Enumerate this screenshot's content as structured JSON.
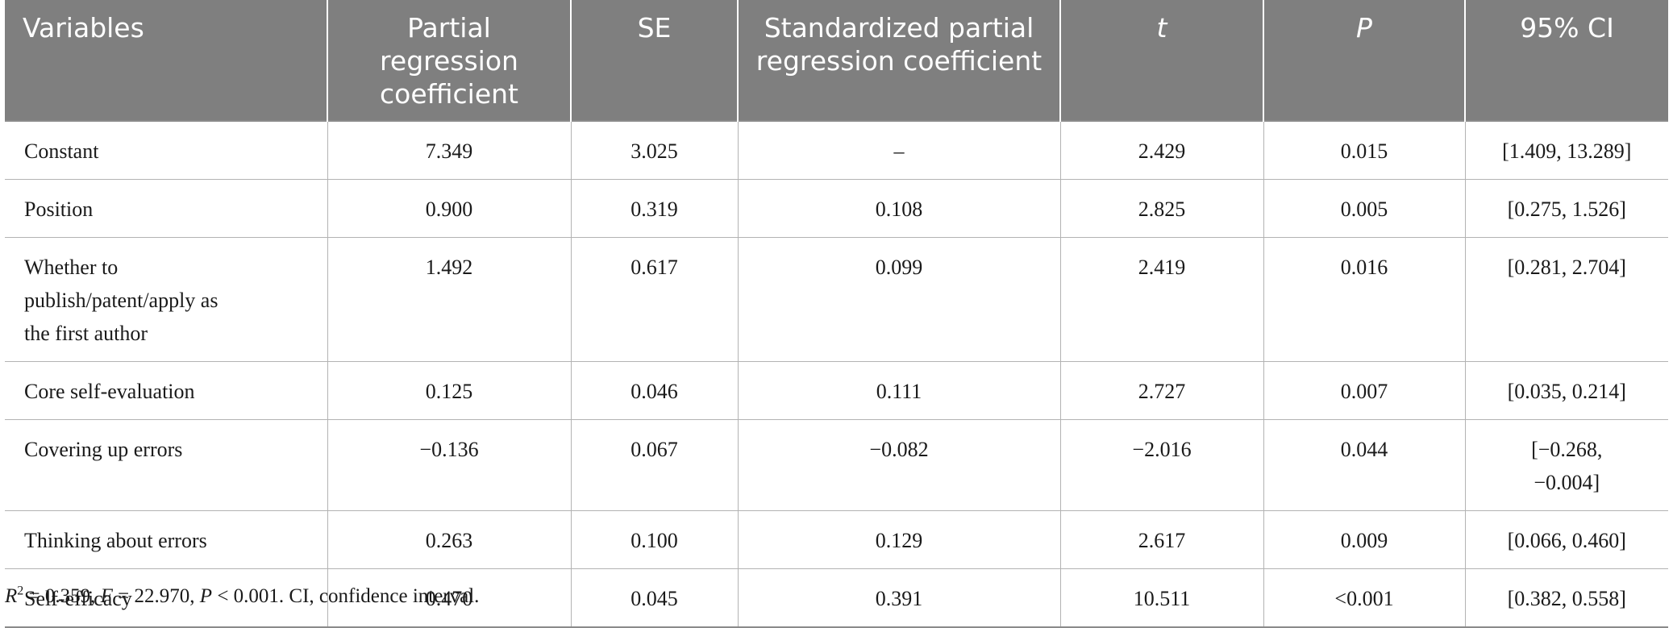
{
  "table": {
    "headers": [
      "Variables",
      "Partial regression coefficient",
      "SE",
      "Standardized partial regression coefficient",
      "t",
      "P",
      "95% CI"
    ],
    "rows": [
      [
        "Constant",
        "7.349",
        "3.025",
        "–",
        "2.429",
        "0.015",
        "[1.409, 13.289]"
      ],
      [
        "Position",
        "0.900",
        "0.319",
        "0.108",
        "2.825",
        "0.005",
        "[0.275, 1.526]"
      ],
      [
        "Whether to publish/patent/apply as the first author",
        "1.492",
        "0.617",
        "0.099",
        "2.419",
        "0.016",
        "[0.281, 2.704]"
      ],
      [
        "Core self-evaluation",
        "0.125",
        "0.046",
        "0.111",
        "2.727",
        "0.007",
        "[0.035, 0.214]"
      ],
      [
        "Covering up errors",
        "−0.136",
        "0.067",
        "−0.082",
        "−2.016",
        "0.044",
        "[−0.268, −0.004]"
      ],
      [
        "Thinking about errors",
        "0.263",
        "0.100",
        "0.129",
        "2.617",
        "0.009",
        "[0.066, 0.460]"
      ],
      [
        "Self-efficacy",
        "0.470",
        "0.045",
        "0.391",
        "10.511",
        "<0.001",
        "[0.382, 0.558]"
      ]
    ]
  },
  "footnote": {
    "r": "R",
    "r_exp": "2",
    "r_value": " = 0.359, ",
    "f": "F",
    "f_value": " = 22.970, ",
    "p": "P",
    "p_value": " < 0.001. CI, confidence interval."
  },
  "colors": {
    "header_bg": "#7f7f7f",
    "header_text": "#ffffff",
    "grid": "#b3b3b3"
  }
}
